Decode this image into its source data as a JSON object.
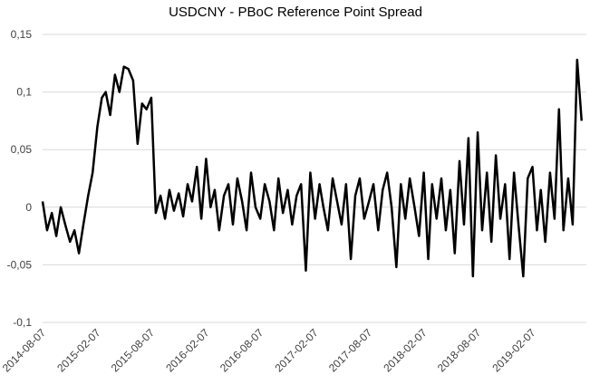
{
  "chart_data": {
    "type": "line",
    "title": "USDCNY - PBoC Reference Point Spread",
    "color": "#000000",
    "grid": true,
    "ylim": [
      -0.1,
      0.15
    ],
    "yticks": [
      {
        "value": -0.1,
        "label": "-0,1"
      },
      {
        "value": -0.05,
        "label": "-0,05"
      },
      0,
      {
        "value": 0.05,
        "label": "0,05"
      },
      {
        "value": 0.1,
        "label": "0,1"
      },
      {
        "value": 0.15,
        "label": "0,15"
      }
    ],
    "xlim": [
      "2014-08-07",
      "2019-08-07"
    ],
    "xticks": [
      "2014-08-07",
      "2015-02-07",
      "2015-08-07",
      "2016-02-07",
      "2016-08-07",
      "2017-02-07",
      "2017-08-07",
      "2018-02-07",
      "2018-08-07",
      "2019-02-07"
    ],
    "x": [
      "2014-08-07",
      "2014-08-22",
      "2014-09-07",
      "2014-09-22",
      "2014-10-07",
      "2014-10-22",
      "2014-11-07",
      "2014-11-22",
      "2014-12-07",
      "2014-12-22",
      "2015-01-07",
      "2015-01-22",
      "2015-02-07",
      "2015-02-22",
      "2015-03-07",
      "2015-03-22",
      "2015-04-07",
      "2015-04-22",
      "2015-05-07",
      "2015-05-22",
      "2015-06-07",
      "2015-06-22",
      "2015-07-07",
      "2015-07-22",
      "2015-08-07",
      "2015-08-22",
      "2015-09-07",
      "2015-09-22",
      "2015-10-07",
      "2015-10-22",
      "2015-11-07",
      "2015-11-22",
      "2015-12-07",
      "2015-12-22",
      "2016-01-07",
      "2016-01-22",
      "2016-02-07",
      "2016-02-22",
      "2016-03-07",
      "2016-03-22",
      "2016-04-07",
      "2016-04-22",
      "2016-05-07",
      "2016-05-22",
      "2016-06-07",
      "2016-06-22",
      "2016-07-07",
      "2016-07-22",
      "2016-08-07",
      "2016-08-22",
      "2016-09-07",
      "2016-09-22",
      "2016-10-07",
      "2016-10-22",
      "2016-11-07",
      "2016-11-22",
      "2016-12-07",
      "2016-12-22",
      "2017-01-07",
      "2017-01-22",
      "2017-02-07",
      "2017-02-22",
      "2017-03-07",
      "2017-03-22",
      "2017-04-07",
      "2017-04-22",
      "2017-05-07",
      "2017-05-22",
      "2017-06-07",
      "2017-06-22",
      "2017-07-07",
      "2017-07-22",
      "2017-08-07",
      "2017-08-22",
      "2017-09-07",
      "2017-09-22",
      "2017-10-07",
      "2017-10-22",
      "2017-11-07",
      "2017-11-22",
      "2017-12-07",
      "2017-12-22",
      "2018-01-07",
      "2018-01-22",
      "2018-02-07",
      "2018-02-22",
      "2018-03-07",
      "2018-03-22",
      "2018-04-07",
      "2018-04-22",
      "2018-05-07",
      "2018-05-22",
      "2018-06-07",
      "2018-06-22",
      "2018-07-07",
      "2018-07-22",
      "2018-08-07",
      "2018-08-22",
      "2018-09-07",
      "2018-09-22",
      "2018-10-07",
      "2018-10-22",
      "2018-11-07",
      "2018-11-22",
      "2018-12-07",
      "2018-12-22",
      "2019-01-07",
      "2019-01-22",
      "2019-02-07",
      "2019-02-22",
      "2019-03-07",
      "2019-03-22",
      "2019-04-07",
      "2019-04-22",
      "2019-05-07",
      "2019-05-22",
      "2019-06-07",
      "2019-06-22",
      "2019-07-07",
      "2019-07-22"
    ],
    "values": [
      0.005,
      -0.02,
      -0.005,
      -0.025,
      0.0,
      -0.015,
      -0.03,
      -0.02,
      -0.04,
      -0.015,
      0.01,
      0.03,
      0.07,
      0.095,
      0.1,
      0.08,
      0.115,
      0.1,
      0.122,
      0.12,
      0.11,
      0.055,
      0.09,
      0.085,
      0.095,
      -0.005,
      0.01,
      -0.01,
      0.015,
      -0.003,
      0.012,
      -0.008,
      0.02,
      0.005,
      0.035,
      -0.01,
      0.042,
      0.0,
      0.015,
      -0.02,
      0.01,
      0.02,
      -0.015,
      0.025,
      0.005,
      -0.02,
      0.03,
      0.0,
      -0.01,
      0.02,
      0.005,
      -0.02,
      0.025,
      -0.005,
      0.015,
      -0.015,
      0.01,
      0.02,
      -0.055,
      0.03,
      -0.01,
      0.02,
      0.0,
      -0.02,
      0.025,
      0.005,
      -0.015,
      0.02,
      -0.045,
      0.01,
      0.025,
      -0.01,
      0.005,
      0.02,
      -0.02,
      0.015,
      0.03,
      0.0,
      -0.052,
      0.02,
      -0.01,
      0.025,
      0.0,
      -0.025,
      0.03,
      -0.045,
      0.02,
      -0.01,
      0.025,
      -0.02,
      0.015,
      -0.04,
      0.04,
      -0.015,
      0.06,
      -0.06,
      0.065,
      -0.02,
      0.03,
      -0.03,
      0.045,
      -0.01,
      0.02,
      -0.045,
      0.03,
      -0.015,
      -0.06,
      0.025,
      0.035,
      -0.02,
      0.015,
      -0.03,
      0.03,
      -0.01,
      0.085,
      -0.02,
      0.025,
      -0.015,
      0.128,
      0.075
    ]
  }
}
